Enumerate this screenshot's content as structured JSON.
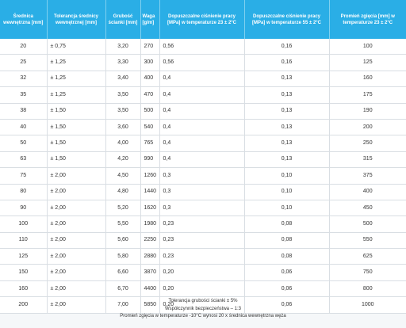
{
  "table": {
    "headers": [
      "Średnica wewnętrzna [mm]",
      "Tolerancja średnicy wewnętrznej [mm]",
      "Grubość ścianki [mm]",
      "Waga [g/m]",
      "Dopuszczalne ciśnienie pracy [MPa] w temperaturze 23 ± 2°C",
      "Dopuszczalne ciśnienie pracy [MPa] w temperaturze 55 ± 2°C",
      "Promień zgięcia [mm] w temperaturze 23 ± 2°C"
    ],
    "rows": [
      [
        "20",
        "± 0,75",
        "3,20",
        "270",
        "0,56",
        "0,16",
        "100"
      ],
      [
        "25",
        "± 1,25",
        "3,30",
        "300",
        "0,56",
        "0,16",
        "125"
      ],
      [
        "32",
        "± 1,25",
        "3,40",
        "400",
        "0,4",
        "0,13",
        "160"
      ],
      [
        "35",
        "± 1,25",
        "3,50",
        "470",
        "0,4",
        "0,13",
        "175"
      ],
      [
        "38",
        "± 1,50",
        "3,50",
        "500",
        "0,4",
        "0,13",
        "190"
      ],
      [
        "40",
        "± 1,50",
        "3,60",
        "540",
        "0,4",
        "0,13",
        "200"
      ],
      [
        "50",
        "± 1,50",
        "4,00",
        "765",
        "0,4",
        "0,13",
        "250"
      ],
      [
        "63",
        "± 1,50",
        "4,20",
        "990",
        "0,4",
        "0,13",
        "315"
      ],
      [
        "75",
        "± 2,00",
        "4,50",
        "1260",
        "0,3",
        "0,10",
        "375"
      ],
      [
        "80",
        "± 2,00",
        "4,80",
        "1440",
        "0,3",
        "0,10",
        "400"
      ],
      [
        "90",
        "± 2,00",
        "5,20",
        "1620",
        "0,3",
        "0,10",
        "450"
      ],
      [
        "100",
        "± 2,00",
        "5,50",
        "1980",
        "0,23",
        "0,08",
        "500"
      ],
      [
        "110",
        "± 2,00",
        "5,60",
        "2250",
        "0,23",
        "0,08",
        "550"
      ],
      [
        "125",
        "± 2,00",
        "5,80",
        "2880",
        "0,23",
        "0,08",
        "625"
      ],
      [
        "150",
        "± 2,00",
        "6,60",
        "3870",
        "0,20",
        "0,06",
        "750"
      ],
      [
        "160",
        "± 2,00",
        "6,70",
        "4400",
        "0,20",
        "0,06",
        "800"
      ],
      [
        "200",
        "± 2,00",
        "7,00",
        "5850",
        "0,20",
        "0,06",
        "1000"
      ]
    ]
  },
  "notes": [
    "Tolerancja grubości ścianki ± 5%",
    "Współczynnik bezpieczeństwa – 1:3",
    "Promień zgięcia w temperaturze -10°C wynosi 20 x średnica wewnętrzna węża"
  ]
}
